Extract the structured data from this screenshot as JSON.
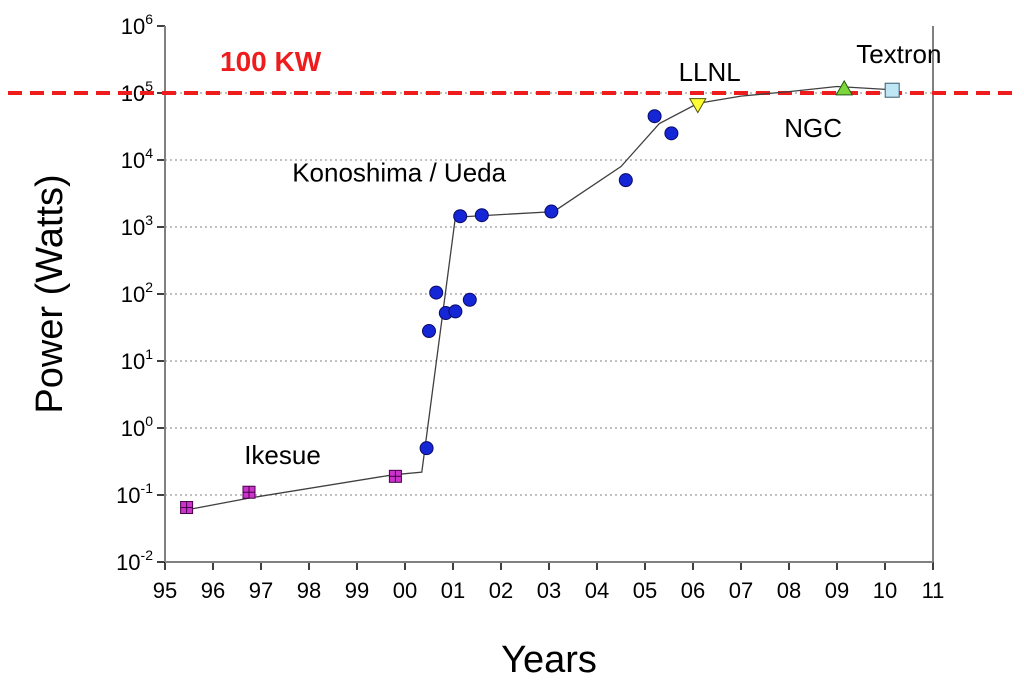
{
  "chart_data": {
    "type": "scatter",
    "xlabel": "Years",
    "ylabel": "Power (Watts)",
    "x_tick_labels": [
      "95",
      "96",
      "97",
      "98",
      "99",
      "00",
      "01",
      "02",
      "03",
      "04",
      "05",
      "06",
      "07",
      "08",
      "09",
      "10",
      "11"
    ],
    "y_scale": "log",
    "y_tick_labels": [
      {
        "base": "10",
        "exp": "-2"
      },
      {
        "base": "10",
        "exp": "-1"
      },
      {
        "base": "10",
        "exp": "0"
      },
      {
        "base": "10",
        "exp": "1"
      },
      {
        "base": "10",
        "exp": "2"
      },
      {
        "base": "10",
        "exp": "3"
      },
      {
        "base": "10",
        "exp": "4"
      },
      {
        "base": "10",
        "exp": "5"
      },
      {
        "base": "10",
        "exp": "6"
      }
    ],
    "xlim": [
      1995,
      2011
    ],
    "ylim": [
      0.01,
      1000000
    ],
    "grid": {
      "y_major": true,
      "x": false
    },
    "reference_line": {
      "y": 100000,
      "label": "100 KW",
      "color": "#ee1c1c"
    },
    "series": [
      {
        "name": "Ikesue",
        "marker": "square-cross",
        "color": "#cc33cc",
        "points": [
          {
            "x": 1995.45,
            "y": 0.065
          },
          {
            "x": 1996.75,
            "y": 0.11
          },
          {
            "x": 1999.8,
            "y": 0.19
          }
        ]
      },
      {
        "name": "Konoshima / Ueda",
        "marker": "circle",
        "color": "#1426d6",
        "points": [
          {
            "x": 2000.45,
            "y": 0.5
          },
          {
            "x": 2000.5,
            "y": 28
          },
          {
            "x": 2000.65,
            "y": 105
          },
          {
            "x": 2000.85,
            "y": 52
          },
          {
            "x": 2001.05,
            "y": 55
          },
          {
            "x": 2001.35,
            "y": 82
          },
          {
            "x": 2001.15,
            "y": 1450
          },
          {
            "x": 2001.6,
            "y": 1500
          },
          {
            "x": 2003.05,
            "y": 1700
          },
          {
            "x": 2004.6,
            "y": 5000
          },
          {
            "x": 2005.2,
            "y": 45000
          },
          {
            "x": 2005.55,
            "y": 25000
          }
        ]
      },
      {
        "name": "LLNL",
        "marker": "triangle-down",
        "color": "#ffff33",
        "points": [
          {
            "x": 2006.1,
            "y": 67000
          }
        ]
      },
      {
        "name": "NGC",
        "marker": "triangle-up",
        "color": "#7cd63a",
        "points": [
          {
            "x": 2009.15,
            "y": 115000
          }
        ]
      },
      {
        "name": "Textron",
        "marker": "square",
        "color": "#bfe6f5",
        "points": [
          {
            "x": 2010.15,
            "y": 110000
          }
        ]
      }
    ],
    "trend_line": [
      {
        "x": 1995.45,
        "y": 0.06
      },
      {
        "x": 1996.75,
        "y": 0.09
      },
      {
        "x": 1999.75,
        "y": 0.2
      },
      {
        "x": 2000.35,
        "y": 0.22
      },
      {
        "x": 2001.05,
        "y": 1400
      },
      {
        "x": 2003.1,
        "y": 1700
      },
      {
        "x": 2004.5,
        "y": 8000
      },
      {
        "x": 2005.3,
        "y": 35000
      },
      {
        "x": 2006.1,
        "y": 70000
      },
      {
        "x": 2007.0,
        "y": 90000
      },
      {
        "x": 2008.0,
        "y": 105000
      },
      {
        "x": 2009.0,
        "y": 125000
      },
      {
        "x": 2010.3,
        "y": 110000
      }
    ],
    "annotations": [
      {
        "text": "Ikesue",
        "x": 1996.65,
        "y": 0.29
      },
      {
        "text": "Konoshima / Ueda",
        "x": 1997.65,
        "y": 4800
      },
      {
        "text": "LLNL",
        "x": 2005.7,
        "y": 150000
      },
      {
        "text": "NGC",
        "x": 2007.9,
        "y": 22000
      },
      {
        "text": "Textron",
        "x": 2009.4,
        "y": 280000
      }
    ]
  }
}
